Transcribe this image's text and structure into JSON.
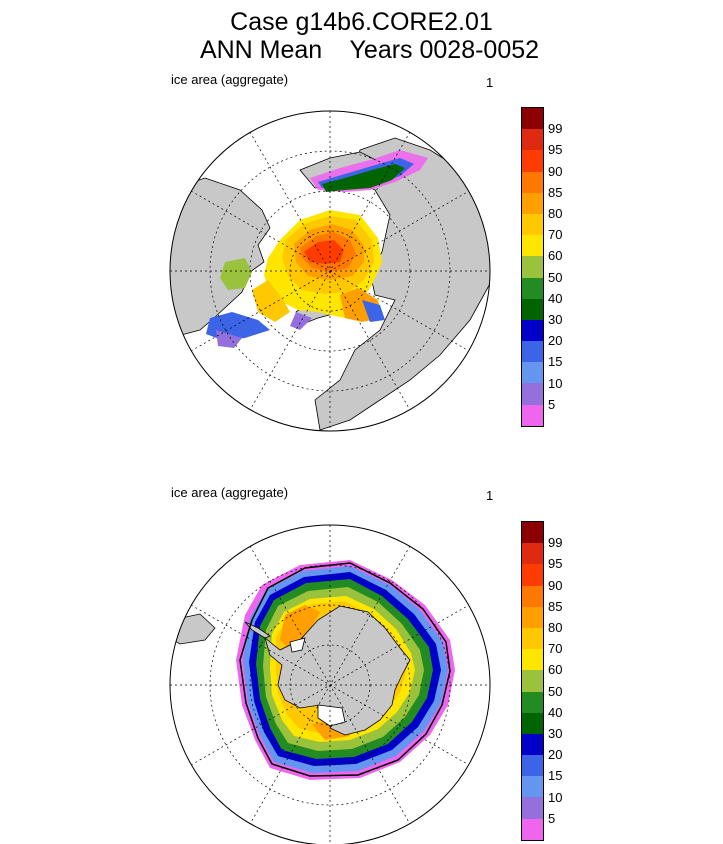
{
  "title": {
    "line1": "Case g14b6.CORE2.01",
    "line2": "ANN Mean    Years 0028-0052"
  },
  "panels": [
    {
      "name": "north",
      "label": "ice area  (aggregate)",
      "number": "1"
    },
    {
      "name": "south",
      "label": "ice area  (aggregate)",
      "number": "1"
    }
  ],
  "colorbar": {
    "labels": [
      "99",
      "95",
      "90",
      "85",
      "80",
      "70",
      "60",
      "50",
      "40",
      "30",
      "20",
      "15",
      "10",
      "5"
    ],
    "colors": [
      "#8b0000",
      "#dd2a10",
      "#ff3c00",
      "#ff7800",
      "#ffa000",
      "#ffc800",
      "#ffe600",
      "#9ac23c",
      "#228b22",
      "#006400",
      "#0000c8",
      "#3c64e6",
      "#6496f0",
      "#9370db",
      "#ee66ee"
    ]
  },
  "colors": {
    "land": "#c8c8c8",
    "ocean": "#ffffff"
  }
}
